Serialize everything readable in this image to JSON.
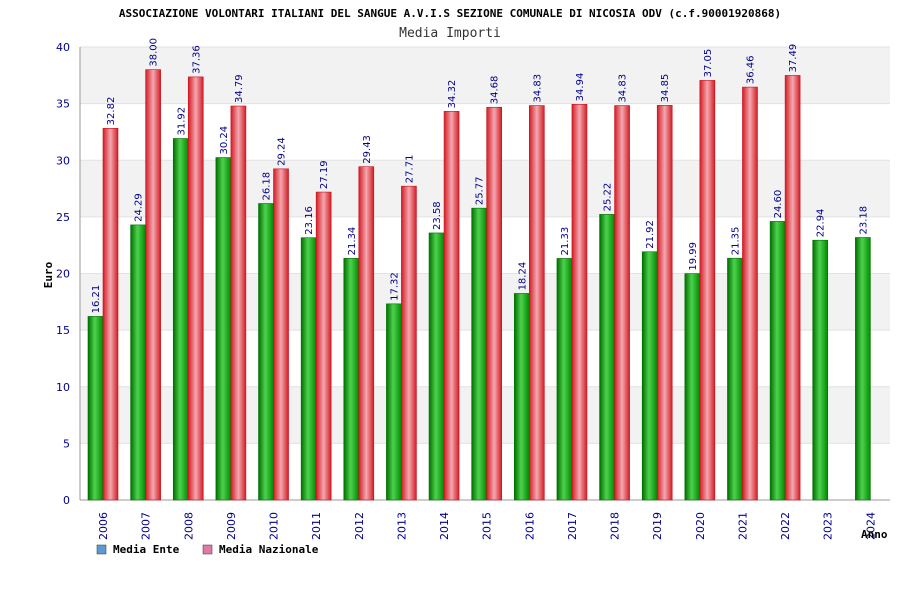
{
  "chart_data": {
    "type": "bar",
    "title": "ASSOCIAZIONE VOLONTARI ITALIANI DEL SANGUE A.V.I.S SEZIONE COMUNALE DI NICOSIA ODV (c.f.90001920868)",
    "subtitle": "Media Importi",
    "xlabel": "Anno",
    "ylabel": "Euro",
    "ylim": [
      0,
      40
    ],
    "yticks": [
      0,
      5,
      10,
      15,
      20,
      25,
      30,
      35,
      40
    ],
    "categories": [
      "2006",
      "2007",
      "2008",
      "2009",
      "2010",
      "2011",
      "2012",
      "2013",
      "2014",
      "2015",
      "2016",
      "2017",
      "2018",
      "2019",
      "2020",
      "2021",
      "2022",
      "2023",
      "2024"
    ],
    "series": [
      {
        "name": "Media Ente",
        "color": "#00b000",
        "values": [
          16.21,
          24.29,
          31.92,
          30.24,
          26.18,
          23.16,
          21.34,
          17.32,
          23.58,
          25.77,
          18.24,
          21.33,
          25.22,
          21.92,
          19.99,
          21.35,
          24.6,
          22.94,
          23.18
        ],
        "labels": [
          "16.21",
          "24.29",
          "31.92",
          "30.24",
          "26.18",
          "23.16",
          "21.34",
          "17.32",
          "23.58",
          "25.77",
          "18.24",
          "21.33",
          "25.22",
          "21.92",
          "19.99",
          "21.35",
          "24.60",
          "22.94",
          "23.18"
        ]
      },
      {
        "name": "Media Nazionale",
        "color": "#e8202a",
        "values": [
          32.82,
          38.0,
          37.36,
          34.79,
          29.24,
          27.19,
          29.43,
          27.71,
          34.32,
          34.68,
          34.83,
          34.94,
          34.83,
          34.85,
          37.05,
          36.46,
          37.49,
          null,
          null
        ],
        "labels": [
          "32.82",
          "38.00",
          "37.36",
          "34.79",
          "29.24",
          "27.19",
          "29.43",
          "27.71",
          "34.32",
          "34.68",
          "34.83",
          "34.94",
          "34.83",
          "34.85",
          "37.05",
          "36.46",
          "37.49",
          null,
          null
        ]
      }
    ],
    "legend": [
      {
        "name": "Media Ente",
        "swatch_color": "#5b9bd5"
      },
      {
        "name": "Media Nazionale",
        "swatch_color": "#e377a8"
      }
    ],
    "legend_position": "bottom-left",
    "grid": true
  }
}
